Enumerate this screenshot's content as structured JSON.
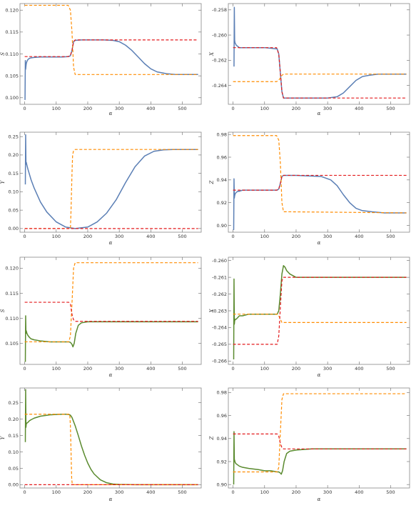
{
  "colors": {
    "blue": "#5b7fb5",
    "green": "#5a8a2e",
    "orange": "#ff8c00",
    "red": "#e31a1c",
    "frame": "#888888"
  },
  "chart_data": [
    {
      "type": "line",
      "panel": "row1-left",
      "xlabel": "α",
      "ylabel": "S",
      "xlim": [
        -15,
        560
      ],
      "ylim": [
        0.0985,
        0.1215
      ],
      "xticks": [
        0,
        100,
        200,
        300,
        400,
        500
      ],
      "yticks": [
        0.1,
        0.105,
        0.11,
        0.115,
        0.12
      ],
      "ytick_labels": [
        "0.100",
        "0.105",
        "0.110",
        "0.115",
        "0.120"
      ],
      "series": [
        {
          "color": "blue",
          "style": "solid",
          "x": [
            1,
            2,
            3,
            4,
            5,
            7,
            10,
            15,
            20,
            30,
            50,
            80,
            120,
            140,
            145,
            150,
            155,
            160,
            180,
            200,
            250,
            280,
            300,
            320,
            340,
            360,
            380,
            400,
            420,
            450,
            480,
            510,
            550
          ],
          "y": [
            0.0995,
            0.1085,
            0.1065,
            0.1072,
            0.1078,
            0.1083,
            0.1087,
            0.109,
            0.1091,
            0.1092,
            0.1093,
            0.1093,
            0.1093,
            0.1094,
            0.1096,
            0.1108,
            0.1128,
            0.1131,
            0.1132,
            0.1132,
            0.1132,
            0.1131,
            0.1128,
            0.112,
            0.1108,
            0.1093,
            0.1078,
            0.1066,
            0.1059,
            0.1055,
            0.1053,
            0.1053,
            0.1053
          ]
        },
        {
          "color": "orange",
          "style": "dashed",
          "x": [
            0,
            138,
            145,
            150,
            155,
            160,
            550
          ],
          "y": [
            0.1211,
            0.1211,
            0.12,
            0.115,
            0.107,
            0.1053,
            0.1053
          ]
        },
        {
          "color": "red",
          "style": "dashed",
          "x": [
            0,
            138,
            145,
            150,
            155,
            160,
            550
          ],
          "y": [
            0.1094,
            0.1094,
            0.1097,
            0.1108,
            0.1128,
            0.1132,
            0.1132
          ]
        }
      ]
    },
    {
      "type": "line",
      "panel": "row1-right",
      "xlabel": "α",
      "ylabel": "X",
      "xlim": [
        -15,
        560
      ],
      "ylim": [
        -0.2655,
        -0.2575
      ],
      "xticks": [
        0,
        100,
        200,
        300,
        400,
        500
      ],
      "yticks": [
        -0.258,
        -0.26,
        -0.262,
        -0.264
      ],
      "ytick_labels": [
        "-0.258",
        "-0.260",
        "-0.262",
        "-0.264"
      ],
      "series": [
        {
          "color": "blue",
          "style": "solid",
          "x": [
            3,
            4,
            5,
            6,
            8,
            10,
            15,
            20,
            30,
            50,
            100,
            140,
            145,
            150,
            155,
            160,
            200,
            300,
            330,
            350,
            370,
            390,
            410,
            430,
            460,
            500,
            550
          ],
          "y": [
            -0.2625,
            -0.2578,
            -0.2604,
            -0.2606,
            -0.2607,
            -0.2608,
            -0.2609,
            -0.261,
            -0.261,
            -0.261,
            -0.261,
            -0.2611,
            -0.2615,
            -0.263,
            -0.2645,
            -0.265,
            -0.265,
            -0.265,
            -0.2649,
            -0.2646,
            -0.2641,
            -0.2636,
            -0.2633,
            -0.2632,
            -0.2631,
            -0.2631,
            -0.2631
          ]
        },
        {
          "color": "orange",
          "style": "dashed",
          "x": [
            0,
            138,
            145,
            150,
            155,
            160,
            550
          ],
          "y": [
            -0.2637,
            -0.2637,
            -0.2636,
            -0.2634,
            -0.2632,
            -0.2631,
            -0.2631
          ]
        },
        {
          "color": "red",
          "style": "dashed",
          "x": [
            0,
            138,
            145,
            150,
            155,
            160,
            550
          ],
          "y": [
            -0.261,
            -0.261,
            -0.2615,
            -0.263,
            -0.2645,
            -0.265,
            -0.265
          ]
        }
      ]
    },
    {
      "type": "line",
      "panel": "row2-left",
      "xlabel": "α",
      "ylabel": "Y",
      "xlim": [
        -15,
        560
      ],
      "ylim": [
        -0.01,
        0.262
      ],
      "xticks": [
        0,
        100,
        200,
        300,
        400,
        500
      ],
      "yticks": [
        0.0,
        0.05,
        0.1,
        0.15,
        0.2,
        0.25
      ],
      "ytick_labels": [
        "0.00",
        "0.05",
        "0.10",
        "0.15",
        "0.20",
        "0.25"
      ],
      "series": [
        {
          "color": "blue",
          "style": "solid",
          "x": [
            2,
            3,
            4,
            5,
            7,
            10,
            20,
            30,
            50,
            70,
            100,
            130,
            160,
            200,
            230,
            260,
            290,
            320,
            350,
            380,
            410,
            440,
            470,
            500,
            550
          ],
          "y": [
            0.12,
            0.255,
            0.175,
            0.18,
            0.172,
            0.162,
            0.133,
            0.11,
            0.072,
            0.045,
            0.018,
            0.004,
            0.0,
            0.004,
            0.018,
            0.042,
            0.078,
            0.125,
            0.168,
            0.197,
            0.21,
            0.214,
            0.215,
            0.215,
            0.215
          ]
        },
        {
          "color": "orange",
          "style": "dashed",
          "x": [
            0,
            145,
            147,
            150,
            152,
            155,
            160,
            550
          ],
          "y": [
            0.0,
            0.0,
            0.05,
            0.15,
            0.2,
            0.212,
            0.215,
            0.215
          ]
        },
        {
          "color": "red",
          "style": "dashed",
          "x": [
            0,
            550
          ],
          "y": [
            0.0,
            0.0
          ]
        }
      ]
    },
    {
      "type": "line",
      "panel": "row2-right",
      "xlabel": "α",
      "ylabel": "Z",
      "xlim": [
        -15,
        560
      ],
      "ylim": [
        0.894,
        0.982
      ],
      "xticks": [
        0,
        100,
        200,
        300,
        400,
        500
      ],
      "yticks": [
        0.9,
        0.92,
        0.94,
        0.96,
        0.98
      ],
      "ytick_labels": [
        "0.90",
        "0.92",
        "0.94",
        "0.96",
        "0.98"
      ],
      "series": [
        {
          "color": "blue",
          "style": "solid",
          "x": [
            2,
            3,
            4,
            5,
            7,
            10,
            15,
            20,
            30,
            50,
            100,
            140,
            145,
            150,
            155,
            160,
            200,
            280,
            310,
            330,
            350,
            370,
            390,
            410,
            440,
            480,
            550
          ],
          "y": [
            0.896,
            0.941,
            0.924,
            0.926,
            0.928,
            0.929,
            0.93,
            0.93,
            0.931,
            0.931,
            0.931,
            0.931,
            0.932,
            0.937,
            0.943,
            0.944,
            0.944,
            0.943,
            0.94,
            0.935,
            0.927,
            0.92,
            0.915,
            0.913,
            0.912,
            0.911,
            0.911
          ]
        },
        {
          "color": "orange",
          "style": "dashed",
          "x": [
            0,
            138,
            145,
            150,
            155,
            160,
            550
          ],
          "y": [
            0.979,
            0.979,
            0.975,
            0.955,
            0.92,
            0.912,
            0.911
          ]
        },
        {
          "color": "red",
          "style": "dashed",
          "x": [
            0,
            138,
            145,
            150,
            155,
            160,
            550
          ],
          "y": [
            0.931,
            0.931,
            0.932,
            0.937,
            0.943,
            0.944,
            0.944
          ]
        }
      ]
    },
    {
      "type": "line",
      "panel": "row3-left",
      "xlabel": "α",
      "ylabel": "S",
      "xlim": [
        -15,
        560
      ],
      "ylim": [
        0.1008,
        0.1222
      ],
      "xticks": [
        0,
        100,
        200,
        300,
        400,
        500
      ],
      "yticks": [
        0.105,
        0.11,
        0.115,
        0.12
      ],
      "ytick_labels": [
        "0.105",
        "0.110",
        "0.115",
        "0.120"
      ],
      "series": [
        {
          "color": "green",
          "style": "solid",
          "x": [
            2,
            3,
            4,
            5,
            7,
            10,
            15,
            20,
            30,
            50,
            80,
            120,
            140,
            145,
            150,
            153,
            157,
            162,
            170,
            180,
            200,
            250,
            300,
            400,
            550
          ],
          "y": [
            0.1013,
            0.1105,
            0.107,
            0.1075,
            0.107,
            0.1066,
            0.1062,
            0.1059,
            0.1057,
            0.1055,
            0.1053,
            0.1053,
            0.1053,
            0.1052,
            0.1048,
            0.1043,
            0.105,
            0.107,
            0.1086,
            0.1091,
            0.1093,
            0.1093,
            0.1093,
            0.1093,
            0.1093
          ]
        },
        {
          "color": "orange",
          "style": "dashed",
          "x": [
            0,
            140,
            145,
            150,
            155,
            160,
            550
          ],
          "y": [
            0.1053,
            0.1053,
            0.1065,
            0.113,
            0.12,
            0.1211,
            0.1211
          ]
        },
        {
          "color": "red",
          "style": "dashed",
          "x": [
            0,
            140,
            145,
            150,
            155,
            160,
            550
          ],
          "y": [
            0.1132,
            0.1132,
            0.1128,
            0.1108,
            0.1097,
            0.1094,
            0.1094
          ]
        }
      ]
    },
    {
      "type": "line",
      "panel": "row3-right",
      "xlabel": "α",
      "ylabel": "X",
      "xlim": [
        -15,
        560
      ],
      "ylim": [
        -0.2662,
        -0.2598
      ],
      "xticks": [
        0,
        100,
        200,
        300,
        400,
        500
      ],
      "yticks": [
        -0.26,
        -0.261,
        -0.262,
        -0.263,
        -0.264,
        -0.265,
        -0.266
      ],
      "ytick_labels": [
        "-0.260",
        "-0.261",
        "-0.262",
        "-0.263",
        "-0.264",
        "-0.265",
        "-0.266"
      ],
      "series": [
        {
          "color": "green",
          "style": "solid",
          "x": [
            2,
            3,
            4,
            5,
            7,
            10,
            15,
            20,
            30,
            50,
            100,
            140,
            145,
            150,
            155,
            160,
            165,
            170,
            180,
            190,
            200,
            250,
            300,
            400,
            550
          ],
          "y": [
            -0.2659,
            -0.2611,
            -0.2638,
            -0.2636,
            -0.2635,
            -0.2635,
            -0.2634,
            -0.2633,
            -0.2633,
            -0.2632,
            -0.2632,
            -0.2632,
            -0.263,
            -0.262,
            -0.2608,
            -0.2603,
            -0.2604,
            -0.2606,
            -0.2608,
            -0.2609,
            -0.261,
            -0.261,
            -0.261,
            -0.261,
            -0.261
          ]
        },
        {
          "color": "orange",
          "style": "dashed",
          "x": [
            0,
            140,
            145,
            150,
            155,
            160,
            550
          ],
          "y": [
            -0.2632,
            -0.2632,
            -0.2633,
            -0.2635,
            -0.2637,
            -0.2637,
            -0.2637
          ]
        },
        {
          "color": "red",
          "style": "dashed",
          "x": [
            0,
            140,
            145,
            150,
            155,
            160,
            550
          ],
          "y": [
            -0.265,
            -0.265,
            -0.2645,
            -0.2628,
            -0.2612,
            -0.261,
            -0.261
          ]
        }
      ]
    },
    {
      "type": "line",
      "panel": "row4-left",
      "xlabel": "α",
      "ylabel": "Y",
      "xlim": [
        -15,
        560
      ],
      "ylim": [
        -0.01,
        0.295
      ],
      "xticks": [
        0,
        100,
        200,
        300,
        400,
        500
      ],
      "yticks": [
        0.0,
        0.05,
        0.1,
        0.15,
        0.2,
        0.25
      ],
      "ytick_labels": [
        "0.00",
        "0.05",
        "0.10",
        "0.15",
        "0.20",
        "0.25"
      ],
      "series": [
        {
          "color": "green",
          "style": "solid",
          "x": [
            2,
            3,
            4,
            5,
            7,
            10,
            15,
            20,
            30,
            50,
            80,
            100,
            120,
            130,
            140,
            145,
            150,
            160,
            170,
            180,
            190,
            200,
            210,
            220,
            240,
            260,
            280,
            300,
            350,
            400,
            550
          ],
          "y": [
            0.13,
            0.29,
            0.175,
            0.185,
            0.188,
            0.19,
            0.195,
            0.198,
            0.203,
            0.209,
            0.213,
            0.214,
            0.215,
            0.215,
            0.214,
            0.212,
            0.205,
            0.18,
            0.15,
            0.118,
            0.09,
            0.066,
            0.047,
            0.033,
            0.015,
            0.006,
            0.002,
            0.001,
            0.0,
            0.0,
            0.0
          ]
        },
        {
          "color": "orange",
          "style": "dashed",
          "x": [
            0,
            143,
            145,
            147,
            149,
            151,
            550
          ],
          "y": [
            0.215,
            0.215,
            0.18,
            0.1,
            0.02,
            0.0,
            0.0
          ]
        },
        {
          "color": "red",
          "style": "dashed",
          "x": [
            0,
            550
          ],
          "y": [
            0.0,
            0.0
          ]
        }
      ]
    },
    {
      "type": "line",
      "panel": "row4-right",
      "xlabel": "α",
      "ylabel": "Z",
      "xlim": [
        -15,
        560
      ],
      "ylim": [
        0.897,
        0.984
      ],
      "xticks": [
        0,
        100,
        200,
        300,
        400,
        500
      ],
      "yticks": [
        0.9,
        0.92,
        0.94,
        0.96,
        0.98
      ],
      "ytick_labels": [
        "0.90",
        "0.92",
        "0.94",
        "0.96",
        "0.98"
      ],
      "series": [
        {
          "color": "green",
          "style": "solid",
          "x": [
            2,
            3,
            4,
            5,
            7,
            10,
            15,
            20,
            30,
            50,
            80,
            100,
            120,
            140,
            145,
            150,
            153,
            157,
            162,
            170,
            180,
            200,
            250,
            300,
            400,
            550
          ],
          "y": [
            0.9,
            0.946,
            0.922,
            0.921,
            0.919,
            0.918,
            0.917,
            0.916,
            0.915,
            0.914,
            0.913,
            0.912,
            0.912,
            0.911,
            0.911,
            0.91,
            0.909,
            0.912,
            0.92,
            0.927,
            0.929,
            0.93,
            0.931,
            0.931,
            0.931,
            0.931
          ]
        },
        {
          "color": "orange",
          "style": "dashed",
          "x": [
            0,
            140,
            145,
            150,
            155,
            160,
            550
          ],
          "y": [
            0.911,
            0.911,
            0.915,
            0.945,
            0.974,
            0.979,
            0.979
          ]
        },
        {
          "color": "red",
          "style": "dashed",
          "x": [
            0,
            140,
            145,
            150,
            155,
            160,
            550
          ],
          "y": [
            0.944,
            0.944,
            0.942,
            0.936,
            0.932,
            0.931,
            0.931
          ]
        }
      ]
    }
  ]
}
